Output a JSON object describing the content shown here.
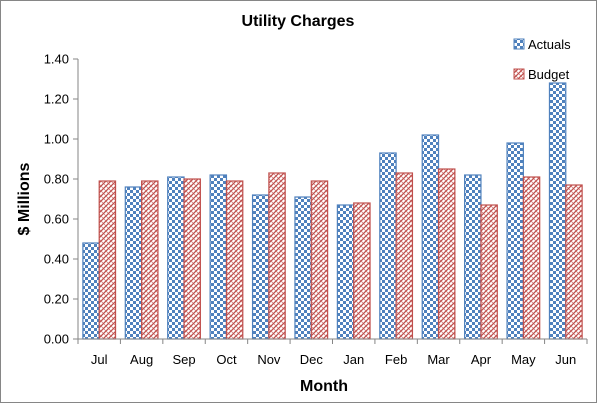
{
  "chart_data": {
    "type": "bar",
    "title": "Utility Charges",
    "xlabel": "Month",
    "ylabel": "$ Millions",
    "categories": [
      "Jul",
      "Aug",
      "Sep",
      "Oct",
      "Nov",
      "Dec",
      "Jan",
      "Feb",
      "Mar",
      "Apr",
      "May",
      "Jun"
    ],
    "series": [
      {
        "name": "Actuals",
        "color": "#4F81BD",
        "values": [
          0.48,
          0.76,
          0.81,
          0.82,
          0.72,
          0.71,
          0.67,
          0.93,
          1.02,
          0.82,
          0.98,
          1.28
        ]
      },
      {
        "name": "Budget",
        "color": "#C0504D",
        "values": [
          0.79,
          0.79,
          0.8,
          0.79,
          0.83,
          0.79,
          0.68,
          0.83,
          0.85,
          0.67,
          0.81,
          0.77
        ]
      }
    ],
    "ylim": [
      0,
      1.4
    ],
    "yticks": [
      "0.00",
      "0.20",
      "0.40",
      "0.60",
      "0.80",
      "1.00",
      "1.20",
      "1.40"
    ],
    "grid": false,
    "legend": "top-right"
  }
}
